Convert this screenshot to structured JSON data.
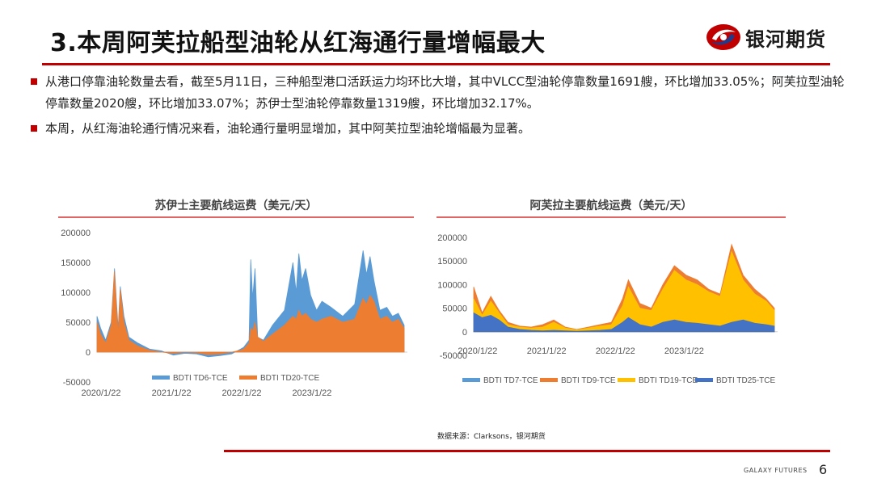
{
  "slide": {
    "title": "3.本周阿芙拉船型油轮从红海通行量增幅最大",
    "brand": "银河期货",
    "bullets": [
      "从港口停靠油轮数量去看，截至5月11日，三种船型港口活跃运力均环比大增，其中VLCC型油轮停靠数量1691艘，环比增加33.05%；阿芙拉型油轮停靠数量2020艘，环比增加33.07%；苏伊士型油轮停靠数量1319艘，环比增加32.17%。",
      "本周，从红海油轮通行情况来看，油轮通行量明显增加，其中阿芙拉型油轮增幅最为显著。"
    ],
    "source": "数据来源：Clarksons，银河期货",
    "footer": "GALAXY FUTURES",
    "page": "6",
    "colors": {
      "accent": "#c00000",
      "td6": "#5b9bd5",
      "td20": "#ed7d31",
      "td7": "#5b9bd5",
      "td9": "#ed7d31",
      "td19": "#ffc000",
      "td25": "#4472c4"
    }
  },
  "chart_data": [
    {
      "type": "area",
      "title": "苏伊士主要航线运费（美元/天）",
      "ylim": [
        -50000,
        200000
      ],
      "yticks": [
        "200000",
        "150000",
        "100000",
        "50000",
        "0",
        "-50000"
      ],
      "xlim": [
        "2020-01-01",
        "2024-06-01"
      ],
      "xticks": [
        "2020/1/22",
        "2021/1/22",
        "2022/1/22",
        "2023/1/22"
      ],
      "legend": "bottom",
      "series": [
        {
          "name": "BDTI TD6-TCE",
          "color": "#5b9bd5",
          "x": [
            "2020-01-01",
            "2020-01-20",
            "2020-02-15",
            "2020-03-15",
            "2020-04-01",
            "2020-04-10",
            "2020-04-20",
            "2020-05-01",
            "2020-05-20",
            "2020-06-15",
            "2020-08-01",
            "2020-10-01",
            "2020-12-01",
            "2021-02-01",
            "2021-04-01",
            "2021-06-01",
            "2021-08-01",
            "2021-10-01",
            "2021-12-01",
            "2022-01-15",
            "2022-02-01",
            "2022-03-01",
            "2022-03-10",
            "2022-03-20",
            "2022-04-01",
            "2022-04-15",
            "2022-05-15",
            "2022-07-01",
            "2022-09-01",
            "2022-10-15",
            "2022-11-01",
            "2022-11-15",
            "2022-12-01",
            "2022-12-20",
            "2023-01-15",
            "2023-02-15",
            "2023-03-15",
            "2023-05-01",
            "2023-07-01",
            "2023-09-01",
            "2023-10-15",
            "2023-11-01",
            "2023-11-20",
            "2023-12-10",
            "2024-01-10",
            "2024-02-15",
            "2024-03-15",
            "2024-04-15",
            "2024-05-15"
          ],
          "values": [
            60000,
            40000,
            20000,
            50000,
            140000,
            90000,
            40000,
            110000,
            60000,
            25000,
            15000,
            5000,
            2000,
            -5000,
            -2000,
            -3000,
            -8000,
            -6000,
            -3000,
            5000,
            8000,
            20000,
            155000,
            90000,
            140000,
            25000,
            20000,
            45000,
            70000,
            150000,
            100000,
            165000,
            120000,
            140000,
            95000,
            70000,
            85000,
            75000,
            60000,
            80000,
            170000,
            130000,
            160000,
            120000,
            70000,
            75000,
            60000,
            65000,
            45000
          ]
        },
        {
          "name": "BDTI TD20-TCE",
          "color": "#ed7d31",
          "x": [
            "2020-01-01",
            "2020-01-20",
            "2020-02-15",
            "2020-03-15",
            "2020-04-01",
            "2020-04-10",
            "2020-04-20",
            "2020-05-01",
            "2020-05-20",
            "2020-06-15",
            "2020-08-01",
            "2020-10-01",
            "2020-12-01",
            "2021-02-01",
            "2021-04-01",
            "2021-06-01",
            "2021-08-01",
            "2021-10-01",
            "2021-12-01",
            "2022-01-15",
            "2022-02-01",
            "2022-03-01",
            "2022-03-10",
            "2022-03-20",
            "2022-04-01",
            "2022-04-15",
            "2022-05-15",
            "2022-07-01",
            "2022-09-01",
            "2022-10-15",
            "2022-11-01",
            "2022-11-15",
            "2022-12-01",
            "2022-12-20",
            "2023-01-15",
            "2023-02-15",
            "2023-03-15",
            "2023-05-01",
            "2023-07-01",
            "2023-09-01",
            "2023-10-15",
            "2023-11-01",
            "2023-11-20",
            "2023-12-10",
            "2024-01-10",
            "2024-02-15",
            "2024-03-15",
            "2024-04-15",
            "2024-05-15"
          ],
          "values": [
            50000,
            30000,
            15000,
            45000,
            135000,
            80000,
            30000,
            105000,
            50000,
            20000,
            10000,
            3000,
            0,
            -2000,
            0,
            -1000,
            -4000,
            -3000,
            0,
            3000,
            5000,
            15000,
            40000,
            35000,
            50000,
            25000,
            18000,
            30000,
            45000,
            60000,
            55000,
            70000,
            60000,
            65000,
            55000,
            50000,
            55000,
            60000,
            50000,
            55000,
            90000,
            80000,
            95000,
            85000,
            55000,
            60000,
            50000,
            55000,
            40000
          ]
        }
      ]
    },
    {
      "type": "area",
      "title": "阿芙拉主要航线运费（美元/天）",
      "ylim": [
        -50000,
        200000
      ],
      "yticks": [
        "200000",
        "150000",
        "100000",
        "50000",
        "0",
        "-50000"
      ],
      "xlim": [
        "2020-01-01",
        "2024-06-01"
      ],
      "xticks": [
        "2020/1/22",
        "2021/1/22",
        "2022/1/22",
        "2023/1/22"
      ],
      "legend": "bottom",
      "series": [
        {
          "name": "BDTI TD7-TCE",
          "color": "#5b9bd5",
          "x": [
            "2020-01-01",
            "2020-02-15",
            "2020-04-01",
            "2020-05-15",
            "2020-07-01",
            "2020-09-01",
            "2020-11-01",
            "2021-01-01",
            "2021-03-01",
            "2021-05-01",
            "2021-07-01",
            "2021-09-01",
            "2021-11-01",
            "2022-01-01",
            "2022-03-01",
            "2022-04-01",
            "2022-06-01",
            "2022-08-01",
            "2022-10-01",
            "2022-12-01",
            "2023-02-01",
            "2023-04-01",
            "2023-06-01",
            "2023-08-01",
            "2023-10-01",
            "2023-12-01",
            "2024-02-01",
            "2024-04-01",
            "2024-05-15"
          ],
          "values": [
            50000,
            30000,
            60000,
            35000,
            15000,
            8000,
            5000,
            3000,
            5000,
            4000,
            2000,
            3000,
            5000,
            10000,
            40000,
            55000,
            30000,
            25000,
            45000,
            55000,
            45000,
            40000,
            35000,
            30000,
            45000,
            55000,
            40000,
            35000,
            30000
          ]
        },
        {
          "name": "BDTI TD9-TCE",
          "color": "#ed7d31",
          "x": [
            "2020-01-01",
            "2020-02-15",
            "2020-04-01",
            "2020-05-15",
            "2020-07-01",
            "2020-09-01",
            "2020-11-01",
            "2021-01-01",
            "2021-03-01",
            "2021-05-01",
            "2021-07-01",
            "2021-09-01",
            "2021-11-01",
            "2022-01-01",
            "2022-03-01",
            "2022-04-01",
            "2022-06-01",
            "2022-08-01",
            "2022-10-01",
            "2022-12-01",
            "2023-02-01",
            "2023-04-01",
            "2023-06-01",
            "2023-08-01",
            "2023-10-01",
            "2023-12-01",
            "2024-02-01",
            "2024-04-01",
            "2024-05-15"
          ],
          "values": [
            95000,
            40000,
            75000,
            45000,
            20000,
            12000,
            10000,
            15000,
            25000,
            10000,
            5000,
            10000,
            15000,
            20000,
            70000,
            110000,
            60000,
            50000,
            100000,
            140000,
            120000,
            110000,
            90000,
            80000,
            185000,
            120000,
            90000,
            70000,
            50000
          ]
        },
        {
          "name": "BDTI TD19-TCE",
          "color": "#ffc000",
          "x": [
            "2020-01-01",
            "2020-02-15",
            "2020-04-01",
            "2020-05-15",
            "2020-07-01",
            "2020-09-01",
            "2020-11-01",
            "2021-01-01",
            "2021-03-01",
            "2021-05-01",
            "2021-07-01",
            "2021-09-01",
            "2021-11-01",
            "2022-01-01",
            "2022-03-01",
            "2022-04-01",
            "2022-06-01",
            "2022-08-01",
            "2022-10-01",
            "2022-12-01",
            "2023-02-01",
            "2023-04-01",
            "2023-06-01",
            "2023-08-01",
            "2023-10-01",
            "2023-12-01",
            "2024-02-01",
            "2024-04-01",
            "2024-05-15"
          ],
          "values": [
            70000,
            35000,
            65000,
            40000,
            15000,
            10000,
            8000,
            10000,
            20000,
            8000,
            4000,
            8000,
            12000,
            15000,
            55000,
            95000,
            50000,
            45000,
            90000,
            130000,
            110000,
            100000,
            85000,
            75000,
            170000,
            110000,
            80000,
            65000,
            45000
          ]
        },
        {
          "name": "BDTI TD25-TCE",
          "color": "#4472c4",
          "x": [
            "2020-01-01",
            "2020-02-15",
            "2020-04-01",
            "2020-05-15",
            "2020-07-01",
            "2020-09-01",
            "2020-11-01",
            "2021-01-01",
            "2021-03-01",
            "2021-05-01",
            "2021-07-01",
            "2021-09-01",
            "2021-11-01",
            "2022-01-01",
            "2022-03-01",
            "2022-04-01",
            "2022-06-01",
            "2022-08-01",
            "2022-10-01",
            "2022-12-01",
            "2023-02-01",
            "2023-04-01",
            "2023-06-01",
            "2023-08-01",
            "2023-10-01",
            "2023-12-01",
            "2024-02-01",
            "2024-04-01",
            "2024-05-15"
          ],
          "values": [
            40000,
            30000,
            35000,
            25000,
            10000,
            5000,
            3000,
            2000,
            3000,
            2000,
            1000,
            2000,
            3000,
            5000,
            20000,
            30000,
            15000,
            10000,
            20000,
            25000,
            20000,
            18000,
            15000,
            12000,
            20000,
            25000,
            18000,
            15000,
            12000
          ]
        }
      ]
    }
  ]
}
